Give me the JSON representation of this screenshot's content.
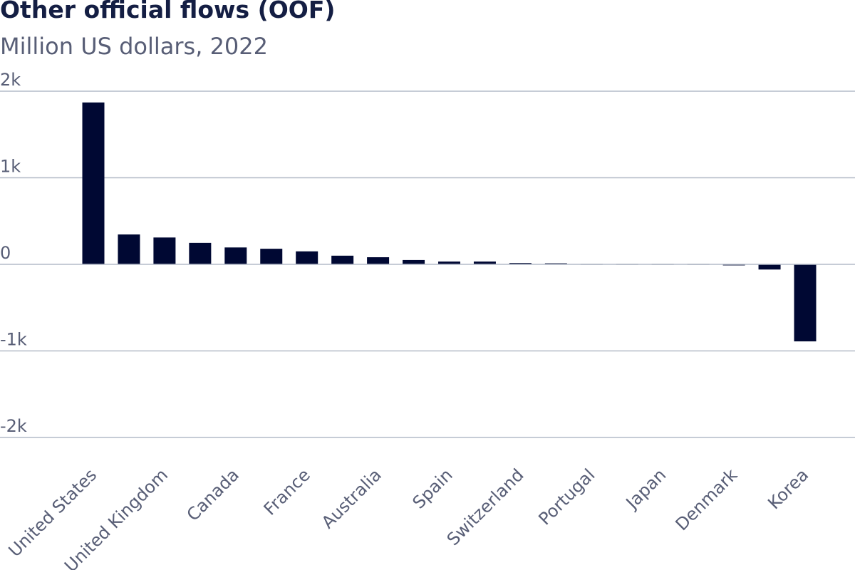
{
  "chart_data": {
    "type": "bar",
    "title": "Other official flows (OOF)",
    "subtitle": "Million US dollars, 2022",
    "xlabel": "",
    "ylabel": "",
    "ylim": [
      -2000,
      2000
    ],
    "yticks": [
      2000,
      1000,
      0,
      -1000,
      -2000
    ],
    "ytick_labels": [
      "2k",
      "1k",
      "0",
      "-1k",
      "-2k"
    ],
    "grid": true,
    "bar_color": "#000833",
    "categories": [
      "United States",
      "",
      "United Kingdom",
      "",
      "Canada",
      "",
      "France",
      "",
      "Australia",
      "",
      "Spain",
      "",
      "Switzerland",
      "",
      "Portugal",
      "",
      "Japan",
      "",
      "Denmark",
      "",
      "Korea"
    ],
    "values": [
      1870,
      345,
      310,
      248,
      195,
      180,
      150,
      100,
      82,
      50,
      32,
      32,
      15,
      12,
      3,
      2,
      2,
      2,
      -12,
      -60,
      -890
    ]
  }
}
